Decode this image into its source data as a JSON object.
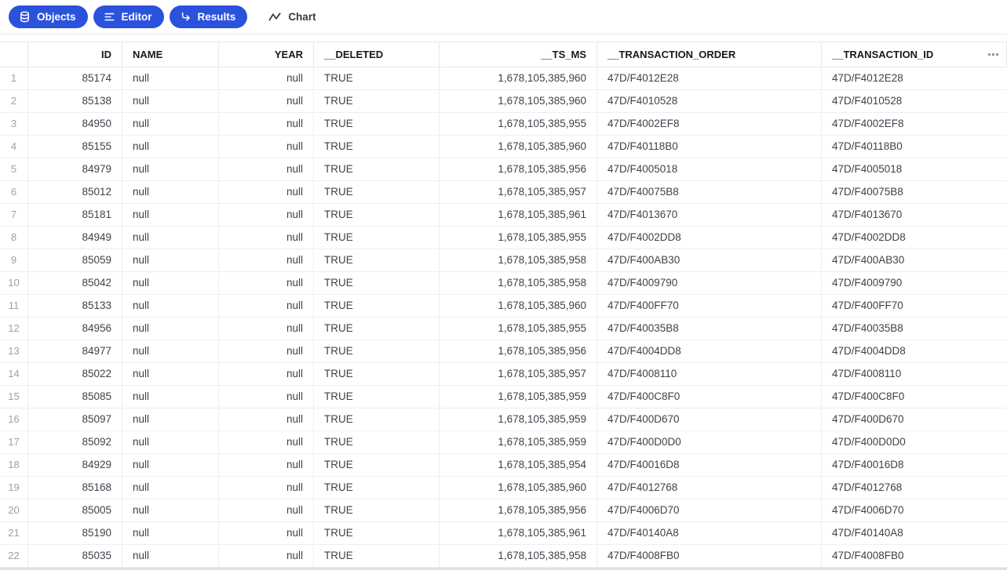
{
  "toolbar": {
    "buttons": [
      {
        "label": "Objects",
        "icon": "database-icon",
        "style": "pill"
      },
      {
        "label": "Editor",
        "icon": "list-lines-icon",
        "style": "pill"
      },
      {
        "label": "Results",
        "icon": "arrow-turn-right-icon",
        "style": "pill"
      },
      {
        "label": "Chart",
        "icon": "activity-chart-icon",
        "style": "plain"
      }
    ]
  },
  "table": {
    "row_number_header": "",
    "header_menu_icon": "ellipsis-icon",
    "columns": [
      {
        "key": "id",
        "label": "ID",
        "align": "right"
      },
      {
        "key": "name",
        "label": "NAME",
        "align": "left"
      },
      {
        "key": "year",
        "label": "YEAR",
        "align": "right"
      },
      {
        "key": "deleted",
        "label": "__DELETED",
        "align": "left"
      },
      {
        "key": "ts_ms",
        "label": "__TS_MS",
        "align": "right"
      },
      {
        "key": "transaction_order",
        "label": "__TRANSACTION_ORDER",
        "align": "left"
      },
      {
        "key": "transaction_id",
        "label": "__TRANSACTION_ID",
        "align": "left"
      }
    ],
    "rows": [
      {
        "n": "1",
        "id": "85174",
        "name": "null",
        "year": "null",
        "deleted": "TRUE",
        "ts_ms": "1,678,105,385,960",
        "transaction_order": "47D/F4012E28",
        "transaction_id": "47D/F4012E28"
      },
      {
        "n": "2",
        "id": "85138",
        "name": "null",
        "year": "null",
        "deleted": "TRUE",
        "ts_ms": "1,678,105,385,960",
        "transaction_order": "47D/F4010528",
        "transaction_id": "47D/F4010528"
      },
      {
        "n": "3",
        "id": "84950",
        "name": "null",
        "year": "null",
        "deleted": "TRUE",
        "ts_ms": "1,678,105,385,955",
        "transaction_order": "47D/F4002EF8",
        "transaction_id": "47D/F4002EF8"
      },
      {
        "n": "4",
        "id": "85155",
        "name": "null",
        "year": "null",
        "deleted": "TRUE",
        "ts_ms": "1,678,105,385,960",
        "transaction_order": "47D/F40118B0",
        "transaction_id": "47D/F40118B0"
      },
      {
        "n": "5",
        "id": "84979",
        "name": "null",
        "year": "null",
        "deleted": "TRUE",
        "ts_ms": "1,678,105,385,956",
        "transaction_order": "47D/F4005018",
        "transaction_id": "47D/F4005018"
      },
      {
        "n": "6",
        "id": "85012",
        "name": "null",
        "year": "null",
        "deleted": "TRUE",
        "ts_ms": "1,678,105,385,957",
        "transaction_order": "47D/F40075B8",
        "transaction_id": "47D/F40075B8"
      },
      {
        "n": "7",
        "id": "85181",
        "name": "null",
        "year": "null",
        "deleted": "TRUE",
        "ts_ms": "1,678,105,385,961",
        "transaction_order": "47D/F4013670",
        "transaction_id": "47D/F4013670"
      },
      {
        "n": "8",
        "id": "84949",
        "name": "null",
        "year": "null",
        "deleted": "TRUE",
        "ts_ms": "1,678,105,385,955",
        "transaction_order": "47D/F4002DD8",
        "transaction_id": "47D/F4002DD8"
      },
      {
        "n": "9",
        "id": "85059",
        "name": "null",
        "year": "null",
        "deleted": "TRUE",
        "ts_ms": "1,678,105,385,958",
        "transaction_order": "47D/F400AB30",
        "transaction_id": "47D/F400AB30"
      },
      {
        "n": "10",
        "id": "85042",
        "name": "null",
        "year": "null",
        "deleted": "TRUE",
        "ts_ms": "1,678,105,385,958",
        "transaction_order": "47D/F4009790",
        "transaction_id": "47D/F4009790"
      },
      {
        "n": "11",
        "id": "85133",
        "name": "null",
        "year": "null",
        "deleted": "TRUE",
        "ts_ms": "1,678,105,385,960",
        "transaction_order": "47D/F400FF70",
        "transaction_id": "47D/F400FF70"
      },
      {
        "n": "12",
        "id": "84956",
        "name": "null",
        "year": "null",
        "deleted": "TRUE",
        "ts_ms": "1,678,105,385,955",
        "transaction_order": "47D/F40035B8",
        "transaction_id": "47D/F40035B8"
      },
      {
        "n": "13",
        "id": "84977",
        "name": "null",
        "year": "null",
        "deleted": "TRUE",
        "ts_ms": "1,678,105,385,956",
        "transaction_order": "47D/F4004DD8",
        "transaction_id": "47D/F4004DD8"
      },
      {
        "n": "14",
        "id": "85022",
        "name": "null",
        "year": "null",
        "deleted": "TRUE",
        "ts_ms": "1,678,105,385,957",
        "transaction_order": "47D/F4008110",
        "transaction_id": "47D/F4008110"
      },
      {
        "n": "15",
        "id": "85085",
        "name": "null",
        "year": "null",
        "deleted": "TRUE",
        "ts_ms": "1,678,105,385,959",
        "transaction_order": "47D/F400C8F0",
        "transaction_id": "47D/F400C8F0"
      },
      {
        "n": "16",
        "id": "85097",
        "name": "null",
        "year": "null",
        "deleted": "TRUE",
        "ts_ms": "1,678,105,385,959",
        "transaction_order": "47D/F400D670",
        "transaction_id": "47D/F400D670"
      },
      {
        "n": "17",
        "id": "85092",
        "name": "null",
        "year": "null",
        "deleted": "TRUE",
        "ts_ms": "1,678,105,385,959",
        "transaction_order": "47D/F400D0D0",
        "transaction_id": "47D/F400D0D0"
      },
      {
        "n": "18",
        "id": "84929",
        "name": "null",
        "year": "null",
        "deleted": "TRUE",
        "ts_ms": "1,678,105,385,954",
        "transaction_order": "47D/F40016D8",
        "transaction_id": "47D/F40016D8"
      },
      {
        "n": "19",
        "id": "85168",
        "name": "null",
        "year": "null",
        "deleted": "TRUE",
        "ts_ms": "1,678,105,385,960",
        "transaction_order": "47D/F4012768",
        "transaction_id": "47D/F4012768"
      },
      {
        "n": "20",
        "id": "85005",
        "name": "null",
        "year": "null",
        "deleted": "TRUE",
        "ts_ms": "1,678,105,385,956",
        "transaction_order": "47D/F4006D70",
        "transaction_id": "47D/F4006D70"
      },
      {
        "n": "21",
        "id": "85190",
        "name": "null",
        "year": "null",
        "deleted": "TRUE",
        "ts_ms": "1,678,105,385,961",
        "transaction_order": "47D/F40140A8",
        "transaction_id": "47D/F40140A8"
      },
      {
        "n": "22",
        "id": "85035",
        "name": "null",
        "year": "null",
        "deleted": "TRUE",
        "ts_ms": "1,678,105,385,958",
        "transaction_order": "47D/F4008FB0",
        "transaction_id": "47D/F4008FB0"
      }
    ]
  },
  "colors": {
    "accent_blue": "#2b52dc",
    "border_light": "#eceef0",
    "border_header": "#e7e8eb",
    "header_text": "#16191e",
    "cell_text": "#3d434b",
    "row_number_text": "#9aa1aa"
  }
}
